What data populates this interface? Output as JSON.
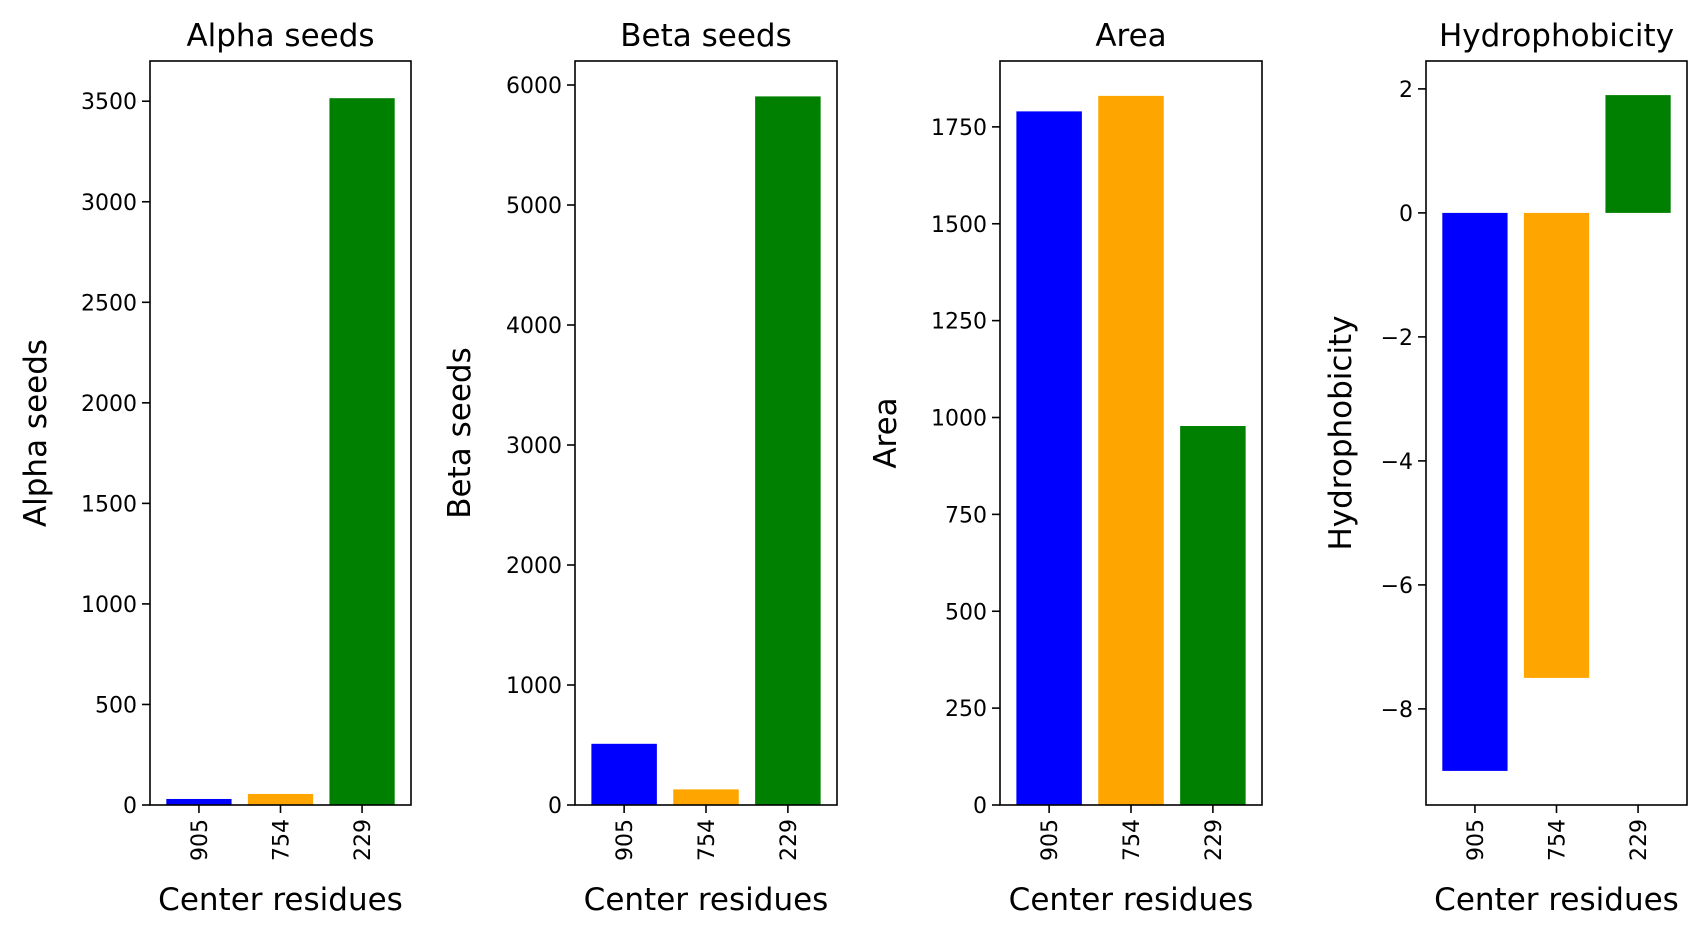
{
  "chart_data": [
    {
      "type": "bar",
      "title": "Alpha seeds",
      "xlabel": "Center residues",
      "ylabel": "Alpha seeds",
      "categories": [
        "905",
        "754",
        "229"
      ],
      "values": [
        30,
        55,
        3515
      ],
      "colors": [
        "#0000ff",
        "#ffa500",
        "#008000"
      ],
      "ylim": [
        0,
        3700
      ],
      "yticks": [
        0,
        500,
        1000,
        1500,
        2000,
        2500,
        3000,
        3500
      ],
      "ytick_labels": [
        "0",
        "500",
        "1000",
        "1500",
        "2000",
        "2500",
        "3000",
        "3500"
      ]
    },
    {
      "type": "bar",
      "title": "Beta seeds",
      "xlabel": "Center residues",
      "ylabel": "Beta seeds",
      "categories": [
        "905",
        "754",
        "229"
      ],
      "values": [
        510,
        130,
        5905
      ],
      "colors": [
        "#0000ff",
        "#ffa500",
        "#008000"
      ],
      "ylim": [
        0,
        6200
      ],
      "yticks": [
        0,
        1000,
        2000,
        3000,
        4000,
        5000,
        6000
      ],
      "ytick_labels": [
        "0",
        "1000",
        "2000",
        "3000",
        "4000",
        "5000",
        "6000"
      ]
    },
    {
      "type": "bar",
      "title": "Area",
      "xlabel": "Center residues",
      "ylabel": "Area",
      "categories": [
        "905",
        "754",
        "229"
      ],
      "values": [
        1790,
        1830,
        978
      ],
      "colors": [
        "#0000ff",
        "#ffa500",
        "#008000"
      ],
      "ylim": [
        0,
        1920
      ],
      "yticks": [
        0,
        250,
        500,
        750,
        1000,
        1250,
        1500,
        1750
      ],
      "ytick_labels": [
        "0",
        "250",
        "500",
        "750",
        "1000",
        "1250",
        "1500",
        "1750"
      ]
    },
    {
      "type": "bar",
      "title": "Hydrophobicity",
      "xlabel": "Center residues",
      "ylabel": "Hydrophobicity",
      "categories": [
        "905",
        "754",
        "229"
      ],
      "values": [
        -9.0,
        -7.5,
        1.9
      ],
      "colors": [
        "#0000ff",
        "#ffa500",
        "#008000"
      ],
      "ylim": [
        -9.55,
        2.45
      ],
      "yticks": [
        -8,
        -6,
        -4,
        -2,
        0,
        2
      ],
      "ytick_labels": [
        "−8",
        "−6",
        "−4",
        "−2",
        "0",
        "2"
      ]
    }
  ]
}
